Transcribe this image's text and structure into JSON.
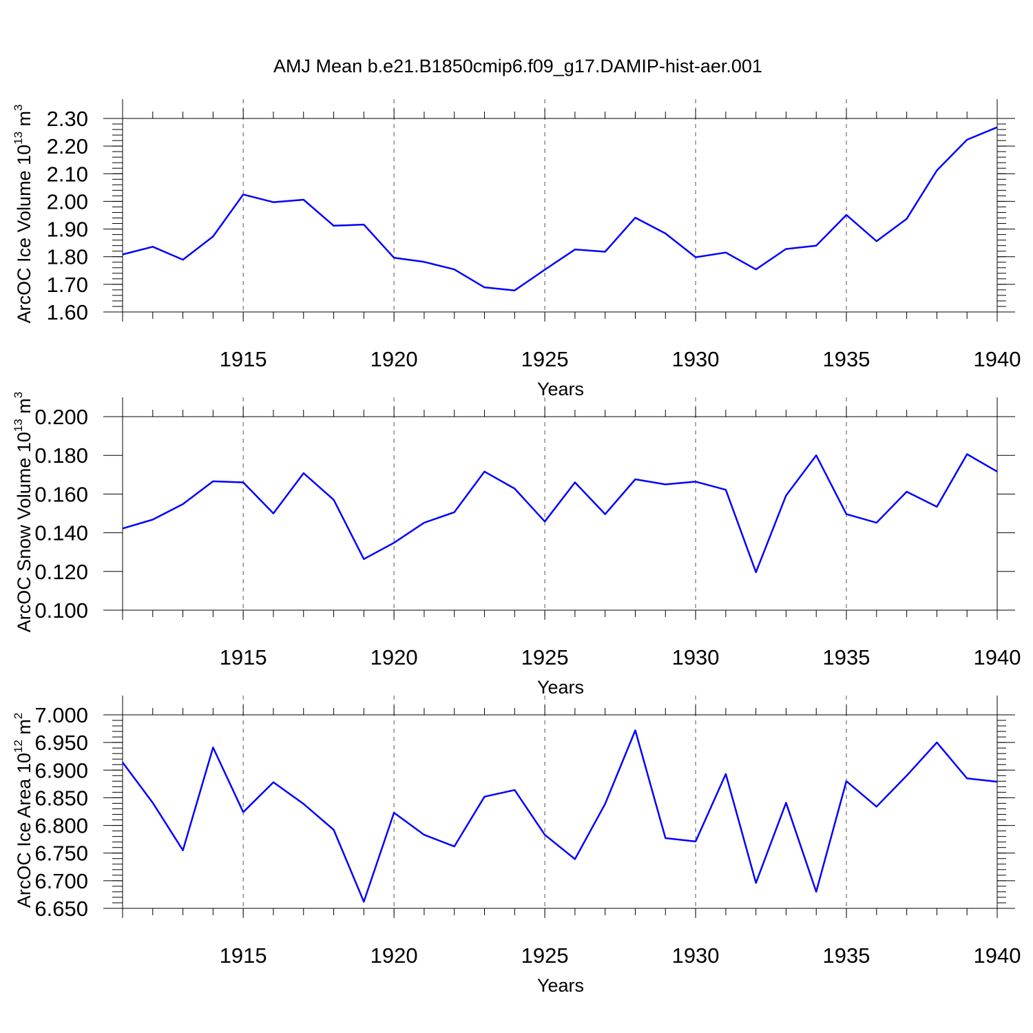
{
  "title": "AMJ Mean b.e21.B1850cmip6.f09_g17.DAMIP-hist-aer.001",
  "line_color": "#0000ff",
  "grid_style": "dashed vertical lines at major x ticks",
  "chart_data": [
    {
      "type": "line",
      "ylabel": "ArcOC Ice Volume 10",
      "ylabel_sup": "13",
      "ylabel_unit": " m",
      "ylabel_unit_sup": "3",
      "xlabel": "Years",
      "xlim": [
        1911,
        1940
      ],
      "ylim": [
        1.6,
        2.3
      ],
      "y_ticks": [
        "1.60",
        "1.70",
        "1.80",
        "1.90",
        "2.00",
        "2.10",
        "2.20",
        "2.30"
      ],
      "y_minor_step": 0.02,
      "x_ticks": [
        "1915",
        "1920",
        "1925",
        "1930",
        "1935",
        "1940"
      ],
      "x": [
        1911,
        1912,
        1913,
        1914,
        1915,
        1916,
        1917,
        1918,
        1919,
        1920,
        1921,
        1922,
        1923,
        1924,
        1925,
        1926,
        1927,
        1928,
        1929,
        1930,
        1931,
        1932,
        1933,
        1934,
        1935,
        1936,
        1937,
        1938,
        1939,
        1940
      ],
      "series": [
        {
          "values": [
            1.808,
            1.836,
            1.789,
            1.873,
            2.025,
            1.997,
            2.006,
            1.912,
            1.916,
            1.796,
            1.781,
            1.754,
            1.689,
            1.678,
            1.753,
            1.826,
            1.818,
            1.941,
            1.884,
            1.798,
            1.815,
            1.754,
            1.828,
            1.84,
            1.951,
            1.856,
            1.937,
            2.112,
            2.223,
            2.268
          ]
        }
      ]
    },
    {
      "type": "line",
      "ylabel": "ArcOC Snow Volume 10",
      "ylabel_sup": "13",
      "ylabel_unit": " m",
      "ylabel_unit_sup": "3",
      "xlabel": "Years",
      "xlim": [
        1911,
        1940
      ],
      "ylim": [
        0.1,
        0.2
      ],
      "y_ticks": [
        "0.100",
        "0.120",
        "0.140",
        "0.160",
        "0.180",
        "0.200"
      ],
      "y_minor_step": null,
      "x_ticks": [
        "1915",
        "1920",
        "1925",
        "1930",
        "1935",
        "1940"
      ],
      "x": [
        1911,
        1912,
        1913,
        1914,
        1915,
        1916,
        1917,
        1918,
        1919,
        1920,
        1921,
        1922,
        1923,
        1924,
        1925,
        1926,
        1927,
        1928,
        1929,
        1930,
        1931,
        1932,
        1933,
        1934,
        1935,
        1936,
        1937,
        1938,
        1939,
        1940
      ],
      "series": [
        {
          "values": [
            0.1422,
            0.1468,
            0.1548,
            0.1666,
            0.166,
            0.15,
            0.1708,
            0.157,
            0.1264,
            0.1348,
            0.1452,
            0.1506,
            0.1716,
            0.1628,
            0.1458,
            0.166,
            0.1496,
            0.1676,
            0.165,
            0.1664,
            0.1622,
            0.1196,
            0.1592,
            0.18,
            0.1496,
            0.1452,
            0.1612,
            0.1534,
            0.1806,
            0.1716
          ]
        }
      ]
    },
    {
      "type": "line",
      "ylabel": "ArcOC Ice Area 10",
      "ylabel_sup": "12",
      "ylabel_unit": " m",
      "ylabel_unit_sup": "2",
      "xlabel": "Years",
      "xlim": [
        1911,
        1940
      ],
      "ylim": [
        6.65,
        7.0
      ],
      "y_ticks": [
        "6.650",
        "6.700",
        "6.750",
        "6.800",
        "6.850",
        "6.900",
        "6.950",
        "7.000"
      ],
      "y_minor_step": 0.01,
      "x_ticks": [
        "1915",
        "1920",
        "1925",
        "1930",
        "1935",
        "1940"
      ],
      "x": [
        1911,
        1912,
        1913,
        1914,
        1915,
        1916,
        1917,
        1918,
        1919,
        1920,
        1921,
        1922,
        1923,
        1924,
        1925,
        1926,
        1927,
        1928,
        1929,
        1930,
        1931,
        1932,
        1933,
        1934,
        1935,
        1936,
        1937,
        1938,
        1939,
        1940
      ],
      "series": [
        {
          "values": [
            6.914,
            6.841,
            6.755,
            6.941,
            6.824,
            6.878,
            6.839,
            6.792,
            6.662,
            6.823,
            6.783,
            6.762,
            6.852,
            6.864,
            6.783,
            6.739,
            6.839,
            6.972,
            6.777,
            6.771,
            6.893,
            6.696,
            6.841,
            6.68,
            6.88,
            6.834,
            6.89,
            6.95,
            6.885,
            6.879
          ]
        }
      ]
    }
  ]
}
